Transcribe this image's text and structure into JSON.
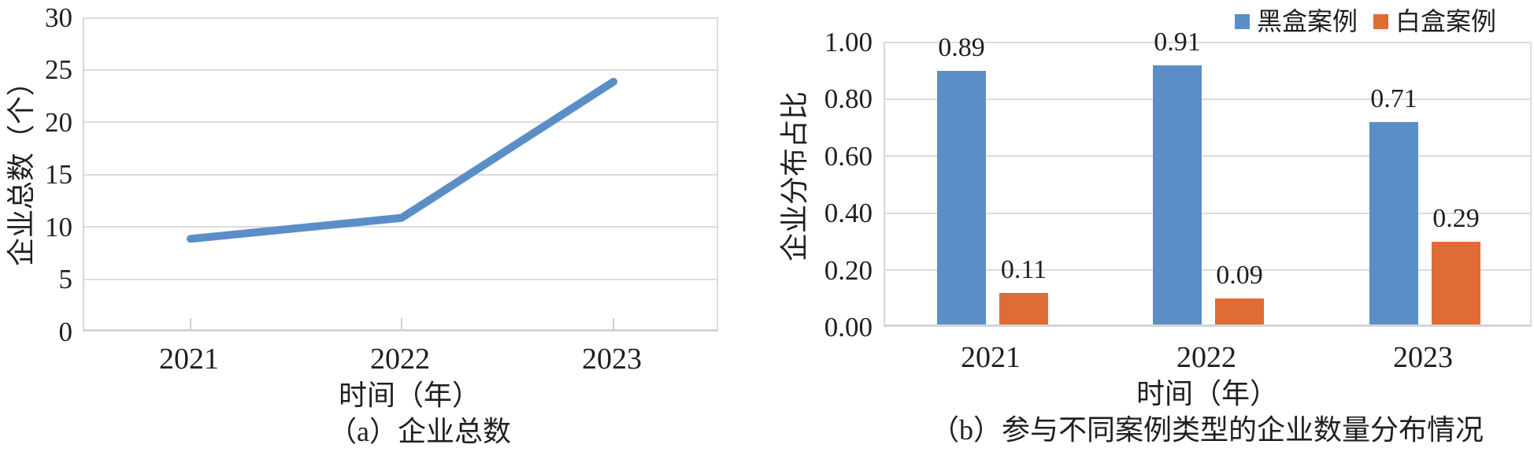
{
  "page": {
    "background_color": "#ffffff",
    "text_color": "#1f1f1f",
    "gridline_color": "#dcdcdc"
  },
  "chart_data": [
    {
      "type": "line",
      "caption": "（a）企业总数",
      "categories": [
        "2021",
        "2022",
        "2023"
      ],
      "values": [
        9,
        11,
        24
      ],
      "xlabel": "时间（年）",
      "ylabel": "企业总数（个）",
      "ylim": [
        0,
        30
      ],
      "ytick_step": 5,
      "yticks": [
        "30",
        "25",
        "20",
        "15",
        "10",
        "5",
        "0"
      ],
      "grid": true,
      "line_color": "#5b8ec6",
      "legend": "none"
    },
    {
      "type": "bar",
      "caption": "（b）参与不同案例类型的企业数量分布情况",
      "categories": [
        "2021",
        "2022",
        "2023"
      ],
      "series": [
        {
          "name": "黑盒案例",
          "color": "#5b8ec6",
          "values": [
            0.89,
            0.91,
            0.71
          ]
        },
        {
          "name": "白盒案例",
          "color": "#e06c35",
          "values": [
            0.11,
            0.09,
            0.29
          ]
        }
      ],
      "xlabel": "时间（年）",
      "ylabel": "企业分布占比",
      "ylim": [
        0,
        1.0
      ],
      "ytick_step": 0.2,
      "yticks": [
        "1.00",
        "0.80",
        "0.60",
        "0.40",
        "0.20",
        "0.00"
      ],
      "grid": true,
      "legend_position": "top-right"
    }
  ]
}
